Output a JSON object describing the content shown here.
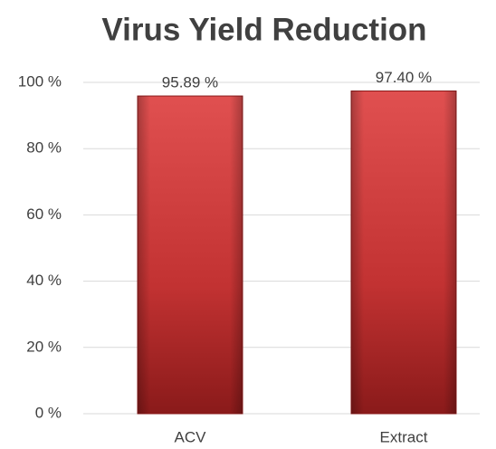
{
  "chart_data": {
    "type": "bar",
    "title": "Virus Yield Reduction",
    "categories": [
      "ACV",
      "Extract"
    ],
    "values": [
      95.89,
      97.4
    ],
    "value_labels": [
      "95.89 %",
      "97.40 %"
    ],
    "color": "#c0302f",
    "ylim": [
      0,
      100
    ],
    "yticks": [
      {
        "value": 0,
        "label": "0 %"
      },
      {
        "value": 20,
        "label": "20 %"
      },
      {
        "value": 40,
        "label": "40 %"
      },
      {
        "value": 60,
        "label": "60 %"
      },
      {
        "value": 80,
        "label": "80 %"
      },
      {
        "value": 100,
        "label": "100 %"
      }
    ],
    "grid": true
  }
}
